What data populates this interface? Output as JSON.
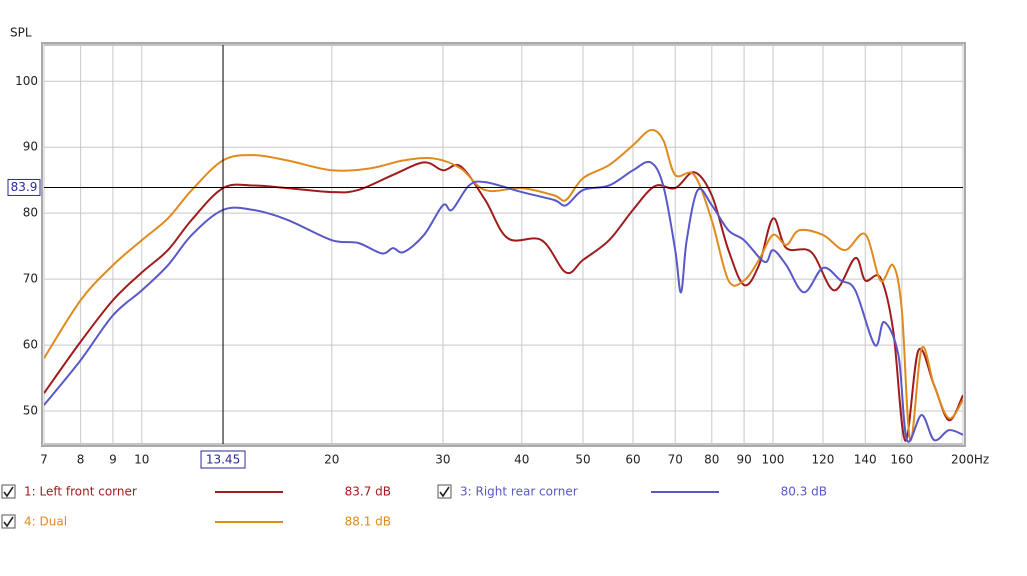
{
  "chart_data": {
    "type": "line",
    "ylabel": "SPL",
    "xscale": "log",
    "xlim": [
      7,
      200
    ],
    "ylim": [
      45,
      105.5
    ],
    "xticks": [
      7,
      8,
      9,
      10,
      20,
      30,
      40,
      50,
      60,
      70,
      80,
      90,
      100,
      120,
      140,
      160,
      {
        "value": 200,
        "label": "200Hz"
      }
    ],
    "yticks": [
      50,
      60,
      70,
      80,
      90,
      100
    ],
    "grid": true,
    "cursor": {
      "x": 13.45,
      "y": 83.9
    },
    "series": [
      {
        "name": "1: Left front corner",
        "color": "#a01c1c",
        "level": "83.7 dB",
        "x": [
          7,
          8,
          9,
          10,
          11,
          12,
          13.45,
          15,
          17,
          20,
          22,
          25,
          28,
          30,
          32,
          35,
          38,
          43,
          47,
          50,
          55,
          60,
          65,
          70,
          75,
          80,
          85,
          90,
          95,
          100,
          105,
          115,
          125,
          135,
          140,
          148,
          155,
          162,
          170,
          180,
          190,
          200
        ],
        "values": [
          52.7,
          60.5,
          66.8,
          71,
          74.4,
          79,
          83.8,
          84.2,
          83.8,
          83.2,
          83.5,
          85.8,
          87.7,
          86.5,
          87.1,
          82,
          76.2,
          75.9,
          71,
          72.9,
          75.9,
          80.5,
          84.1,
          83.8,
          86.2,
          82.7,
          74.4,
          69.1,
          72.1,
          79.2,
          74.7,
          74.1,
          68.3,
          73.2,
          69.8,
          70.2,
          62.3,
          45.5,
          59.2,
          53.9,
          48.6,
          52.4
        ]
      },
      {
        "name": "4: Dual",
        "color": "#e08a1e",
        "level": "88.1 dB",
        "x": [
          7,
          8,
          9,
          10,
          11,
          12,
          13.45,
          15,
          17,
          20,
          23,
          26,
          29,
          32,
          35,
          40,
          45,
          47,
          50,
          55,
          60,
          64,
          67,
          70,
          75,
          80,
          85,
          90,
          95,
          100,
          105,
          110,
          120,
          130,
          140,
          148,
          155,
          160,
          165,
          172,
          180,
          190,
          200
        ],
        "values": [
          58,
          66.8,
          72.1,
          75.9,
          79.2,
          83.5,
          88,
          88.8,
          88,
          86.5,
          86.8,
          88,
          88.3,
          86.8,
          83.5,
          83.8,
          82.7,
          82,
          85.3,
          87.3,
          90.3,
          92.6,
          91.1,
          85.8,
          85.8,
          78.9,
          69.8,
          69.8,
          72.9,
          76.7,
          75.2,
          77.4,
          76.7,
          74.4,
          76.8,
          69.8,
          72.1,
          65.3,
          45.6,
          59.5,
          53.9,
          48.9,
          51.7
        ]
      },
      {
        "name": "3: Right rear corner",
        "color": "#5858c8",
        "level": "80.3 dB",
        "x": [
          7,
          8,
          9,
          10,
          11,
          12,
          13.45,
          15,
          17,
          20,
          22,
          24,
          25,
          26,
          28,
          30,
          31,
          33,
          35,
          40,
          45,
          47,
          50,
          55,
          60,
          64,
          67,
          70,
          71.5,
          73,
          76,
          80,
          85,
          90,
          97,
          100,
          105,
          112,
          120,
          128,
          135,
          145,
          150,
          158,
          163,
          172,
          180,
          190,
          200
        ],
        "values": [
          50.9,
          57.7,
          64.5,
          68.3,
          72.1,
          76.7,
          80.5,
          80.5,
          79,
          75.9,
          75.5,
          73.9,
          74.7,
          74.1,
          76.7,
          81.2,
          80.5,
          84.2,
          84.7,
          83.2,
          82,
          81.2,
          83.5,
          84.2,
          86.5,
          87.7,
          84.2,
          74.4,
          68,
          75.9,
          83.5,
          81.2,
          77.4,
          75.9,
          72.6,
          74.4,
          72.1,
          68,
          71.7,
          69.8,
          68.3,
          60,
          63.5,
          58.5,
          45.6,
          49.4,
          45.6,
          47.1,
          46.4
        ]
      }
    ]
  }
}
